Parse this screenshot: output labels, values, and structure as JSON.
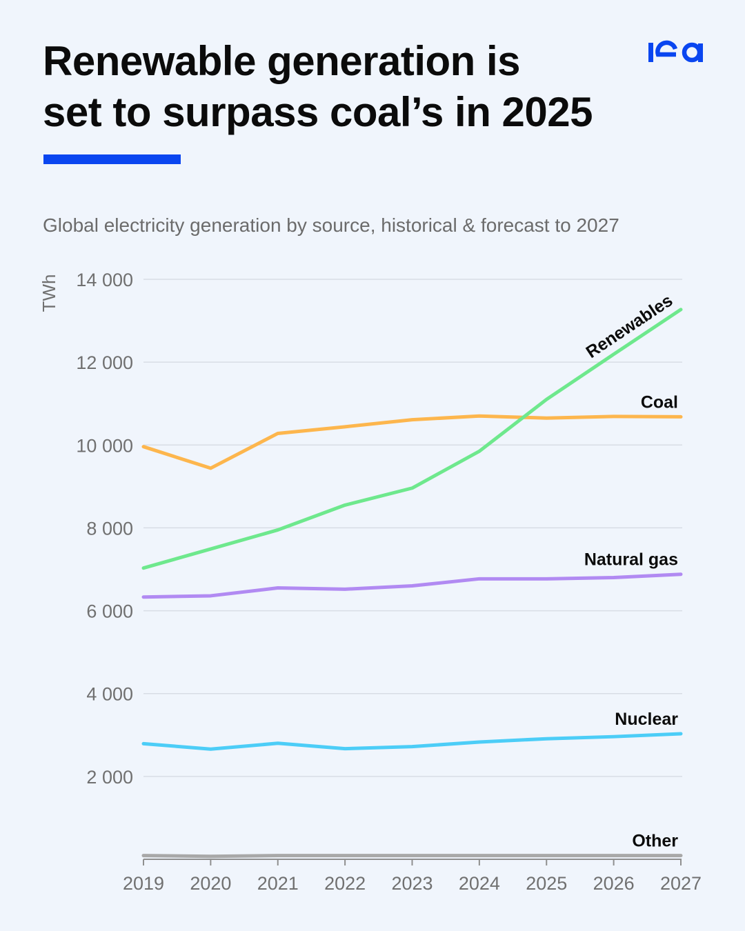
{
  "header": {
    "title": "Renewable generation is\nset to surpass coal’s in 2025",
    "subtitle": "Global electricity generation by source, historical & forecast to 2027",
    "accent_color": "#0a46f0",
    "logo_icon": "iea-logo-icon"
  },
  "chart_data": {
    "type": "line",
    "x": [
      "2019",
      "2020",
      "2021",
      "2022",
      "2023",
      "2024",
      "2025",
      "2026",
      "2027"
    ],
    "ylabel": "TWh",
    "ylim": [
      0,
      14000
    ],
    "yticks": [
      2000,
      4000,
      6000,
      8000,
      10000,
      12000,
      14000
    ],
    "ytick_labels": [
      "2 000",
      "4 000",
      "6 000",
      "8 000",
      "10 000",
      "12 000",
      "14 000"
    ],
    "grid": true,
    "series": [
      {
        "name": "Renewables",
        "color": "#6ee88d",
        "values": [
          7030,
          7490,
          7950,
          8550,
          8960,
          9850,
          11100,
          12190,
          13270
        ]
      },
      {
        "name": "Coal",
        "color": "#fdb64d",
        "values": [
          9960,
          9440,
          10280,
          10440,
          10610,
          10700,
          10650,
          10690,
          10680
        ]
      },
      {
        "name": "Natural gas",
        "color": "#b18af2",
        "values": [
          6330,
          6360,
          6550,
          6520,
          6600,
          6770,
          6770,
          6800,
          6880
        ]
      },
      {
        "name": "Nuclear",
        "color": "#4ccdf7",
        "values": [
          2790,
          2660,
          2800,
          2670,
          2720,
          2830,
          2910,
          2960,
          3030
        ]
      },
      {
        "name": "Other",
        "color": "#a8a8a8",
        "values": [
          90,
          70,
          90,
          90,
          90,
          90,
          90,
          90,
          90
        ]
      }
    ]
  }
}
